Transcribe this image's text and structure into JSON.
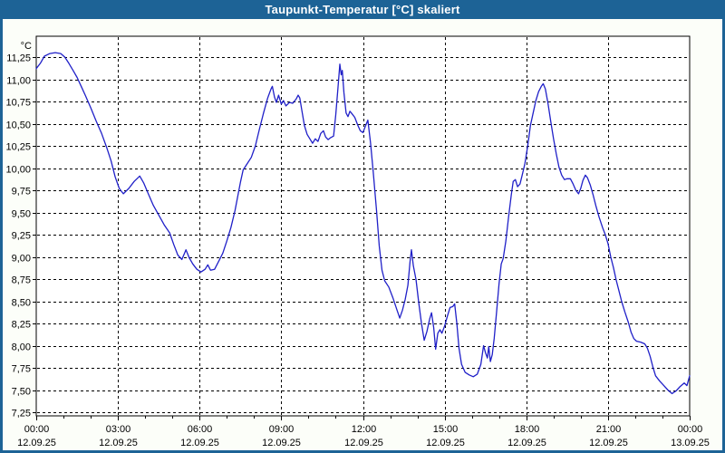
{
  "window": {
    "title": "Taupunkt-Temperatur [°C] skaliert"
  },
  "colors": {
    "titlebar": "#1d6396",
    "window_border": "#1d6396",
    "background": "#fcfef9",
    "plot_background": "#ffffff",
    "plot_border": "#000000",
    "grid": "#000000",
    "line": "#2020c8",
    "text": "#000000"
  },
  "chart_data": {
    "type": "line",
    "title": "Taupunkt-Temperatur [°C] skaliert",
    "grid": true,
    "legend": "none",
    "y_axis": {
      "unit": "°C",
      "min": 7.25,
      "max": 11.25,
      "step": 0.25,
      "tick_labels": [
        "11,25",
        "11,00",
        "10,75",
        "10,50",
        "10,25",
        "10,00",
        "9,75",
        "9,50",
        "9,25",
        "9,00",
        "8,75",
        "8,50",
        "8,25",
        "8,00",
        "7,75",
        "7,50",
        "7,25"
      ]
    },
    "x_axis": {
      "hours_span": 24,
      "minor_step_hours": 1,
      "major_step_hours": 3,
      "ticks": [
        {
          "hour": 0,
          "time": "00:00",
          "date": "12.09.25"
        },
        {
          "hour": 3,
          "time": "03:00",
          "date": "12.09.25"
        },
        {
          "hour": 6,
          "time": "06:00",
          "date": "12.09.25"
        },
        {
          "hour": 9,
          "time": "09:00",
          "date": "12.09.25"
        },
        {
          "hour": 12,
          "time": "12:00",
          "date": "12.09.25"
        },
        {
          "hour": 15,
          "time": "15:00",
          "date": "12.09.25"
        },
        {
          "hour": 18,
          "time": "18:00",
          "date": "12.09.25"
        },
        {
          "hour": 21,
          "time": "21:00",
          "date": "12.09.25"
        },
        {
          "hour": 24,
          "time": "00:00",
          "date": "13.09.25"
        }
      ]
    },
    "series": [
      {
        "name": "Taupunkt-Temperatur",
        "color": "#2020c8",
        "points": [
          [
            0.0,
            11.12
          ],
          [
            0.15,
            11.18
          ],
          [
            0.3,
            11.26
          ],
          [
            0.5,
            11.29
          ],
          [
            0.7,
            11.3
          ],
          [
            0.9,
            11.29
          ],
          [
            1.05,
            11.25
          ],
          [
            1.2,
            11.18
          ],
          [
            1.35,
            11.1
          ],
          [
            1.5,
            11.02
          ],
          [
            1.65,
            10.92
          ],
          [
            1.8,
            10.82
          ],
          [
            2.0,
            10.68
          ],
          [
            2.2,
            10.53
          ],
          [
            2.4,
            10.39
          ],
          [
            2.6,
            10.22
          ],
          [
            2.75,
            10.08
          ],
          [
            2.9,
            9.9
          ],
          [
            3.05,
            9.77
          ],
          [
            3.2,
            9.71
          ],
          [
            3.4,
            9.77
          ],
          [
            3.6,
            9.85
          ],
          [
            3.8,
            9.91
          ],
          [
            3.95,
            9.83
          ],
          [
            4.1,
            9.72
          ],
          [
            4.3,
            9.58
          ],
          [
            4.5,
            9.47
          ],
          [
            4.7,
            9.36
          ],
          [
            4.9,
            9.27
          ],
          [
            5.05,
            9.14
          ],
          [
            5.2,
            9.02
          ],
          [
            5.35,
            8.97
          ],
          [
            5.5,
            9.08
          ],
          [
            5.62,
            8.99
          ],
          [
            5.75,
            8.92
          ],
          [
            5.9,
            8.86
          ],
          [
            6.05,
            8.83
          ],
          [
            6.2,
            8.86
          ],
          [
            6.3,
            8.91
          ],
          [
            6.4,
            8.85
          ],
          [
            6.55,
            8.86
          ],
          [
            6.7,
            8.95
          ],
          [
            6.85,
            9.04
          ],
          [
            7.0,
            9.18
          ],
          [
            7.15,
            9.33
          ],
          [
            7.3,
            9.52
          ],
          [
            7.4,
            9.68
          ],
          [
            7.5,
            9.84
          ],
          [
            7.6,
            9.98
          ],
          [
            7.75,
            10.05
          ],
          [
            7.9,
            10.12
          ],
          [
            8.05,
            10.25
          ],
          [
            8.2,
            10.44
          ],
          [
            8.35,
            10.62
          ],
          [
            8.5,
            10.79
          ],
          [
            8.62,
            10.89
          ],
          [
            8.67,
            10.92
          ],
          [
            8.75,
            10.8
          ],
          [
            8.82,
            10.74
          ],
          [
            8.9,
            10.82
          ],
          [
            9.0,
            10.72
          ],
          [
            9.08,
            10.76
          ],
          [
            9.17,
            10.7
          ],
          [
            9.3,
            10.74
          ],
          [
            9.42,
            10.73
          ],
          [
            9.55,
            10.78
          ],
          [
            9.62,
            10.82
          ],
          [
            9.68,
            10.79
          ],
          [
            9.75,
            10.66
          ],
          [
            9.85,
            10.48
          ],
          [
            9.95,
            10.38
          ],
          [
            10.05,
            10.33
          ],
          [
            10.15,
            10.28
          ],
          [
            10.25,
            10.33
          ],
          [
            10.35,
            10.3
          ],
          [
            10.45,
            10.39
          ],
          [
            10.55,
            10.42
          ],
          [
            10.63,
            10.35
          ],
          [
            10.72,
            10.32
          ],
          [
            10.8,
            10.34
          ],
          [
            10.92,
            10.36
          ],
          [
            11.0,
            10.6
          ],
          [
            11.08,
            10.9
          ],
          [
            11.15,
            11.17
          ],
          [
            11.2,
            11.05
          ],
          [
            11.24,
            11.1
          ],
          [
            11.3,
            10.85
          ],
          [
            11.38,
            10.62
          ],
          [
            11.45,
            10.58
          ],
          [
            11.52,
            10.64
          ],
          [
            11.6,
            10.61
          ],
          [
            11.7,
            10.57
          ],
          [
            11.8,
            10.49
          ],
          [
            11.9,
            10.42
          ],
          [
            12.0,
            10.4
          ],
          [
            12.1,
            10.48
          ],
          [
            12.18,
            10.54
          ],
          [
            12.28,
            10.28
          ],
          [
            12.38,
            9.95
          ],
          [
            12.5,
            9.52
          ],
          [
            12.6,
            9.12
          ],
          [
            12.7,
            8.85
          ],
          [
            12.8,
            8.73
          ],
          [
            12.95,
            8.66
          ],
          [
            13.1,
            8.54
          ],
          [
            13.25,
            8.4
          ],
          [
            13.35,
            8.31
          ],
          [
            13.45,
            8.4
          ],
          [
            13.55,
            8.52
          ],
          [
            13.65,
            8.68
          ],
          [
            13.73,
            8.95
          ],
          [
            13.78,
            9.08
          ],
          [
            13.85,
            8.9
          ],
          [
            13.95,
            8.74
          ],
          [
            14.05,
            8.48
          ],
          [
            14.15,
            8.25
          ],
          [
            14.25,
            8.06
          ],
          [
            14.35,
            8.16
          ],
          [
            14.45,
            8.3
          ],
          [
            14.52,
            8.37
          ],
          [
            14.6,
            8.2
          ],
          [
            14.67,
            7.96
          ],
          [
            14.75,
            8.14
          ],
          [
            14.83,
            8.18
          ],
          [
            14.9,
            8.14
          ],
          [
            15.0,
            8.22
          ],
          [
            15.1,
            8.33
          ],
          [
            15.2,
            8.43
          ],
          [
            15.3,
            8.44
          ],
          [
            15.37,
            8.47
          ],
          [
            15.45,
            8.25
          ],
          [
            15.53,
            7.97
          ],
          [
            15.62,
            7.79
          ],
          [
            15.75,
            7.7
          ],
          [
            15.9,
            7.67
          ],
          [
            16.05,
            7.65
          ],
          [
            16.2,
            7.68
          ],
          [
            16.33,
            7.79
          ],
          [
            16.43,
            8.0
          ],
          [
            16.5,
            7.92
          ],
          [
            16.57,
            7.86
          ],
          [
            16.62,
            7.99
          ],
          [
            16.68,
            7.82
          ],
          [
            16.75,
            7.9
          ],
          [
            16.82,
            8.08
          ],
          [
            16.9,
            8.35
          ],
          [
            17.0,
            8.7
          ],
          [
            17.08,
            8.92
          ],
          [
            17.15,
            8.98
          ],
          [
            17.25,
            9.18
          ],
          [
            17.35,
            9.45
          ],
          [
            17.45,
            9.7
          ],
          [
            17.52,
            9.85
          ],
          [
            17.6,
            9.87
          ],
          [
            17.68,
            9.79
          ],
          [
            17.77,
            9.82
          ],
          [
            17.85,
            9.92
          ],
          [
            17.95,
            10.05
          ],
          [
            18.05,
            10.25
          ],
          [
            18.15,
            10.48
          ],
          [
            18.25,
            10.62
          ],
          [
            18.35,
            10.76
          ],
          [
            18.45,
            10.86
          ],
          [
            18.55,
            10.92
          ],
          [
            18.62,
            10.95
          ],
          [
            18.7,
            10.89
          ],
          [
            18.8,
            10.72
          ],
          [
            18.9,
            10.52
          ],
          [
            19.0,
            10.33
          ],
          [
            19.1,
            10.16
          ],
          [
            19.2,
            10.01
          ],
          [
            19.3,
            9.92
          ],
          [
            19.4,
            9.87
          ],
          [
            19.5,
            9.88
          ],
          [
            19.62,
            9.88
          ],
          [
            19.72,
            9.82
          ],
          [
            19.82,
            9.75
          ],
          [
            19.92,
            9.71
          ],
          [
            20.0,
            9.77
          ],
          [
            20.08,
            9.86
          ],
          [
            20.17,
            9.92
          ],
          [
            20.25,
            9.89
          ],
          [
            20.35,
            9.81
          ],
          [
            20.45,
            9.7
          ],
          [
            20.55,
            9.58
          ],
          [
            20.67,
            9.45
          ],
          [
            20.8,
            9.33
          ],
          [
            20.9,
            9.25
          ],
          [
            21.0,
            9.15
          ],
          [
            21.1,
            9.0
          ],
          [
            21.2,
            8.88
          ],
          [
            21.3,
            8.74
          ],
          [
            21.4,
            8.62
          ],
          [
            21.5,
            8.5
          ],
          [
            21.62,
            8.38
          ],
          [
            21.75,
            8.26
          ],
          [
            21.85,
            8.15
          ],
          [
            21.95,
            8.08
          ],
          [
            22.05,
            8.05
          ],
          [
            22.2,
            8.04
          ],
          [
            22.35,
            8.02
          ],
          [
            22.45,
            7.97
          ],
          [
            22.55,
            7.88
          ],
          [
            22.65,
            7.76
          ],
          [
            22.75,
            7.66
          ],
          [
            22.9,
            7.6
          ],
          [
            23.05,
            7.55
          ],
          [
            23.2,
            7.5
          ],
          [
            23.35,
            7.46
          ],
          [
            23.5,
            7.49
          ],
          [
            23.65,
            7.54
          ],
          [
            23.8,
            7.58
          ],
          [
            23.9,
            7.55
          ],
          [
            24.0,
            7.66
          ]
        ]
      }
    ]
  }
}
